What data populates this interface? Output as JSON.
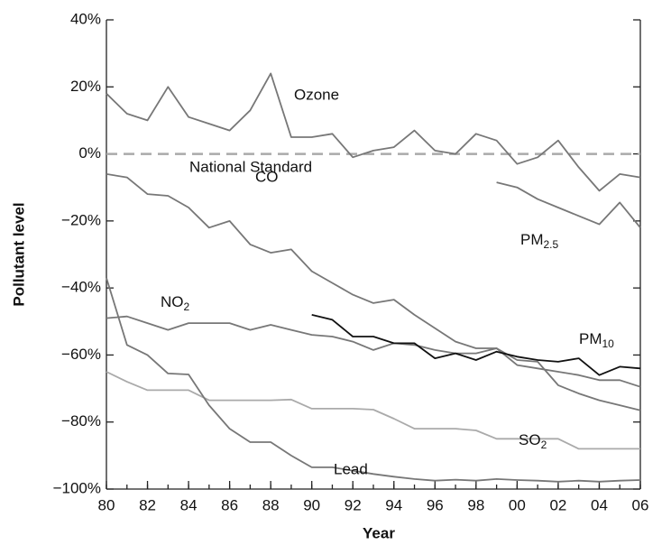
{
  "chart_data": {
    "type": "line",
    "x_label": "Year",
    "y_label": "Pollutant level",
    "x": [
      1980,
      1981,
      1982,
      1983,
      1984,
      1985,
      1986,
      1987,
      1988,
      1989,
      1990,
      1991,
      1992,
      1993,
      1994,
      1995,
      1996,
      1997,
      1998,
      1999,
      2000,
      2001,
      2002,
      2003,
      2004,
      2005,
      2006
    ],
    "xlim": [
      1980,
      2006
    ],
    "xticks": [
      {
        "value": 1980,
        "label": "80"
      },
      {
        "value": 1982,
        "label": "82"
      },
      {
        "value": 1984,
        "label": "84"
      },
      {
        "value": 1986,
        "label": "86"
      },
      {
        "value": 1988,
        "label": "88"
      },
      {
        "value": 1990,
        "label": "90"
      },
      {
        "value": 1992,
        "label": "92"
      },
      {
        "value": 1994,
        "label": "94"
      },
      {
        "value": 1996,
        "label": "96"
      },
      {
        "value": 1998,
        "label": "98"
      },
      {
        "value": 2000,
        "label": "00"
      },
      {
        "value": 2002,
        "label": "02"
      },
      {
        "value": 2004,
        "label": "04"
      },
      {
        "value": 2006,
        "label": "06"
      }
    ],
    "ylim": [
      -100,
      40
    ],
    "yticks": [
      {
        "value": 40,
        "label": "40%"
      },
      {
        "value": 20,
        "label": "20%"
      },
      {
        "value": 0,
        "label": "0%"
      },
      {
        "value": -20,
        "label": "−20%"
      },
      {
        "value": -40,
        "label": "−40%"
      },
      {
        "value": -60,
        "label": "−60%"
      },
      {
        "value": -80,
        "label": "−80%"
      },
      {
        "value": -100,
        "label": "−100%"
      }
    ],
    "reference": {
      "label": "National Standard",
      "value": 0,
      "color": "#aaaaaa"
    },
    "series": [
      {
        "name": "Ozone",
        "color": "#777777",
        "values": [
          18,
          12,
          10,
          20,
          11,
          9,
          7,
          13,
          24,
          5,
          5,
          6,
          -1,
          1,
          2,
          7,
          1,
          0,
          6,
          4,
          -3,
          -1,
          4,
          -4,
          -11,
          -6,
          -7
        ]
      },
      {
        "name": "CO",
        "color": "#777777",
        "values": [
          -6,
          -7,
          -12,
          -12.5,
          -16,
          -22,
          -20,
          -27,
          -29.5,
          -28.5,
          -35,
          -38.5,
          -42,
          -44.5,
          -43.5,
          -48,
          -52,
          -56,
          -58,
          -58,
          -61.5,
          -62,
          -69,
          -71.5,
          -73.5,
          -75,
          -76.5
        ]
      },
      {
        "name": "NO2",
        "color": "#777777",
        "values": [
          -49,
          -48.5,
          -50.5,
          -52.5,
          -50.5,
          -50.5,
          -50.5,
          -52.5,
          -51,
          -52.5,
          -54,
          -54.5,
          -56,
          -58.5,
          -56.5,
          -57,
          -58.5,
          -59.5,
          -59.5,
          -58,
          -63,
          -64,
          -65,
          -66,
          -67.5,
          -67.5,
          -69.5
        ]
      },
      {
        "name": "PM10",
        "color": "#111111",
        "values": [
          null,
          null,
          null,
          null,
          null,
          null,
          null,
          null,
          null,
          null,
          -48,
          -49.5,
          -54.5,
          -54.5,
          -56.5,
          -56.5,
          -61,
          -59.5,
          -61.5,
          -59,
          -60.5,
          -61.5,
          -62,
          -61,
          -66,
          -63.5,
          -64
        ]
      },
      {
        "name": "PM2.5",
        "color": "#777777",
        "values": [
          null,
          null,
          null,
          null,
          null,
          null,
          null,
          null,
          null,
          null,
          null,
          null,
          null,
          null,
          null,
          null,
          null,
          null,
          null,
          -8.5,
          -10,
          -13.5,
          -16,
          -18.5,
          -21,
          -14.5,
          -22
        ]
      },
      {
        "name": "SO2",
        "color": "#aaaaaa",
        "values": [
          -65,
          -68,
          -70.5,
          -70.5,
          -70.5,
          -73.5,
          -73.5,
          -73.5,
          -73.5,
          -73.3,
          -76,
          -76,
          -76,
          -76.3,
          -79,
          -82,
          -82,
          -82,
          -82.5,
          -85,
          -85,
          -85,
          -85,
          -88,
          -88,
          -88,
          -88
        ]
      },
      {
        "name": "Lead",
        "color": "#777777",
        "values": [
          -37,
          -57,
          -60,
          -65.5,
          -65.8,
          -75,
          -82,
          -86,
          -86,
          -90,
          -93.5,
          -93.5,
          -94.5,
          -95.5,
          -96.3,
          -97,
          -97.5,
          -97.2,
          -97.5,
          -97,
          -97.3,
          -97.5,
          -97.8,
          -97.5,
          -97.8,
          -97.5,
          -97.3
        ]
      }
    ]
  }
}
